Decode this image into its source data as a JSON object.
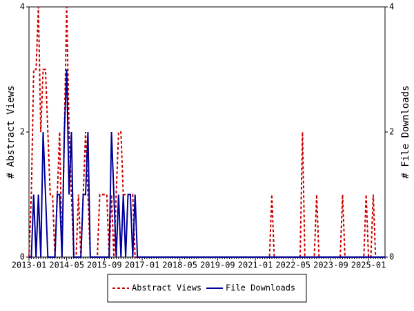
{
  "chart_data": {
    "type": "line",
    "categories": [
      "2013-01",
      null,
      null,
      null,
      null,
      null,
      null,
      null,
      null,
      null,
      null,
      null,
      null,
      null,
      null,
      null,
      "2014-05",
      null,
      null,
      null,
      null,
      null,
      null,
      null,
      null,
      null,
      null,
      null,
      null,
      null,
      null,
      null,
      "2015-09",
      null,
      null,
      null,
      null,
      null,
      null,
      null,
      null,
      null,
      null,
      null,
      null,
      null,
      null,
      null,
      "2017-01",
      null,
      null,
      null,
      null,
      null,
      null,
      null,
      null,
      null,
      null,
      null,
      null,
      null,
      null,
      null,
      "2018-05",
      null,
      null,
      null,
      null,
      null,
      null,
      null,
      null,
      null,
      null,
      null,
      null,
      null,
      null,
      null,
      "2019-09",
      null,
      null,
      null,
      null,
      null,
      null,
      null,
      null,
      null,
      null,
      null,
      null,
      null,
      null,
      null,
      "2021-01",
      null,
      null,
      null,
      null,
      null,
      null,
      null,
      null,
      null,
      null,
      null,
      null,
      null,
      null,
      null,
      "2022-05",
      null,
      null,
      null,
      null,
      null,
      null,
      null,
      null,
      null,
      null,
      null,
      null,
      null,
      null,
      null,
      "2023-09",
      null,
      null,
      null,
      null,
      null,
      null,
      null,
      null,
      null,
      null,
      null,
      null,
      null,
      null,
      null,
      "2025-01",
      null,
      null,
      null,
      null,
      null,
      null,
      null
    ],
    "series": [
      {
        "name": "Abstract Views",
        "color": "#cc0000",
        "dashed": true,
        "values": [
          0,
          1,
          3,
          3,
          4,
          2,
          3,
          3,
          2,
          1,
          1,
          0,
          1,
          2,
          0,
          2,
          4,
          2,
          1,
          0,
          0,
          1,
          0,
          1,
          2,
          1,
          0,
          0,
          0,
          0,
          1,
          1,
          1,
          1,
          0,
          1,
          0,
          1,
          2,
          2,
          1,
          1,
          1,
          1,
          1,
          0,
          0,
          0,
          0,
          0,
          0,
          0,
          0,
          0,
          0,
          0,
          0,
          0,
          0,
          0,
          0,
          0,
          0,
          0,
          0,
          0,
          0,
          0,
          0,
          0,
          0,
          0,
          0,
          0,
          0,
          0,
          0,
          0,
          0,
          0,
          0,
          0,
          0,
          0,
          0,
          0,
          0,
          0,
          0,
          0,
          0,
          0,
          0,
          0,
          0,
          0,
          0,
          0,
          0,
          0,
          0,
          0,
          0,
          1,
          0,
          0,
          0,
          0,
          0,
          0,
          0,
          0,
          0,
          0,
          0,
          0,
          2,
          0,
          0,
          0,
          0,
          0,
          1,
          0,
          0,
          0,
          0,
          0,
          0,
          0,
          0,
          0,
          0,
          1,
          0,
          0,
          0,
          0,
          0,
          0,
          0,
          0,
          0,
          1,
          0,
          0,
          1,
          0,
          0,
          0,
          0,
          0
        ]
      },
      {
        "name": "File Downloads",
        "color": "#000099",
        "dashed": false,
        "axis": "y2",
        "values": [
          0,
          0,
          1,
          0,
          1,
          0,
          2,
          1,
          0,
          0,
          0,
          0,
          1,
          1,
          0,
          2,
          3,
          1,
          2,
          0,
          0,
          0,
          0,
          1,
          1,
          2,
          0,
          0,
          0,
          0,
          0,
          0,
          0,
          0,
          0,
          2,
          1,
          0,
          1,
          0,
          1,
          0,
          1,
          1,
          0,
          1,
          0,
          0,
          0,
          0,
          0,
          0,
          0,
          0,
          0,
          0,
          0,
          0,
          0,
          0,
          0,
          0,
          0,
          0,
          0,
          0,
          0,
          0,
          0,
          0,
          0,
          0,
          0,
          0,
          0,
          0,
          0,
          0,
          0,
          0,
          0,
          0,
          0,
          0,
          0,
          0,
          0,
          0,
          0,
          0,
          0,
          0,
          0,
          0,
          0,
          0,
          0,
          0,
          0,
          0,
          0,
          0,
          0,
          0,
          0,
          0,
          0,
          0,
          0,
          0,
          0,
          0,
          0,
          0,
          0,
          0,
          0,
          0,
          0,
          0,
          0,
          0,
          0,
          0,
          0,
          0,
          0,
          0,
          0,
          0,
          0,
          0,
          0,
          0,
          0,
          0,
          0,
          0,
          0,
          0,
          0,
          0,
          0,
          0,
          0,
          0,
          0,
          0,
          0,
          0,
          0,
          0
        ]
      }
    ],
    "ylabel": "# Abstract Views",
    "y2label": "# File Downloads",
    "ylim": [
      0,
      4
    ],
    "yticks": [
      0,
      2,
      4
    ],
    "y2lim": [
      0,
      4
    ],
    "y2ticks": [
      0,
      2,
      4
    ],
    "grid": false,
    "legend": "bottom"
  }
}
